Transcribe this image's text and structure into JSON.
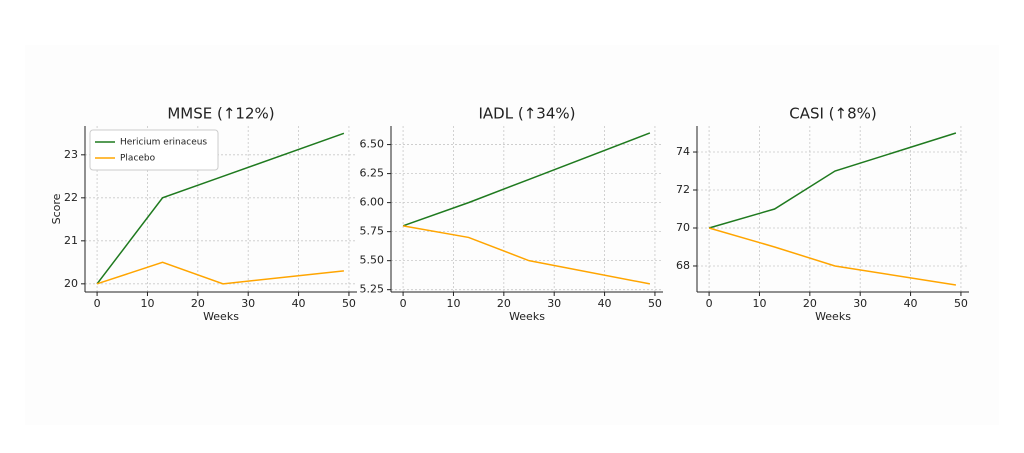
{
  "chart_data": [
    {
      "type": "line",
      "title": "MMSE (↑12%)",
      "xlabel": "Weeks",
      "ylabel": "Score",
      "legend": "upper left",
      "x": [
        0,
        13,
        25,
        49
      ],
      "series": [
        {
          "name": "Hericium erinaceus",
          "color": "#1f7a1f",
          "values": [
            20,
            22,
            22.5,
            23.5
          ]
        },
        {
          "name": "Placebo",
          "color": "#ffa500",
          "values": [
            20,
            20.5,
            20,
            20.3
          ]
        }
      ],
      "xlim": [
        -2.4,
        51.6
      ],
      "xticks": [
        0,
        10,
        20,
        30,
        40,
        50
      ],
      "ylim": [
        19.81,
        23.67
      ],
      "yticks": [
        20,
        21,
        22,
        23
      ],
      "grid": true
    },
    {
      "type": "line",
      "title": "IADL (↑34%)",
      "xlabel": "Weeks",
      "x": [
        0,
        13,
        25,
        49
      ],
      "series": [
        {
          "color": "#1f7a1f",
          "values": [
            5.8,
            6.0,
            6.2,
            6.6
          ]
        },
        {
          "color": "#ffa500",
          "values": [
            5.8,
            5.7,
            5.5,
            5.3
          ]
        }
      ],
      "xlim": [
        -2.4,
        51.6
      ],
      "xticks": [
        0,
        10,
        20,
        30,
        40,
        50
      ],
      "ylim": [
        5.23,
        6.66
      ],
      "yticks": [
        5.25,
        {
          "value": 5.5,
          "label": "5.50"
        },
        5.75,
        {
          "value": 6,
          "label": "6.00"
        },
        6.25,
        {
          "value": 6.5,
          "label": "6.50"
        }
      ],
      "grid": true
    },
    {
      "type": "line",
      "title": "CASI (↑8%)",
      "xlabel": "Weeks",
      "x": [
        0,
        13,
        25,
        49
      ],
      "series": [
        {
          "color": "#1f7a1f",
          "values": [
            70,
            71,
            73,
            75
          ]
        },
        {
          "color": "#ffa500",
          "values": [
            70,
            69,
            68,
            67
          ]
        }
      ],
      "xlim": [
        -2.4,
        51.6
      ],
      "xticks": [
        0,
        10,
        20,
        30,
        40,
        50
      ],
      "ylim": [
        66.63,
        75.37
      ],
      "yticks": [
        68,
        70,
        72,
        74
      ],
      "grid": true
    }
  ]
}
